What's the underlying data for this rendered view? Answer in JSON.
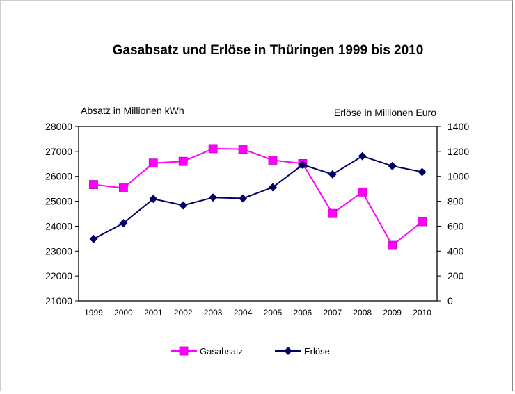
{
  "chart_data": {
    "type": "line",
    "title": "Gasabsatz und Erlöse in Thüringen 1999 bis 2010",
    "ylabel_left": "Absatz in Millionen  kWh",
    "ylabel_right": "Erlöse in Millionen Euro",
    "categories": [
      "1999",
      "2000",
      "2001",
      "2002",
      "2003",
      "2004",
      "2005",
      "2006",
      "2007",
      "2008",
      "2009",
      "2010"
    ],
    "ylim_left": [
      21000,
      28000
    ],
    "yticks_left": [
      "21000",
      "22000",
      "23000",
      "24000",
      "25000",
      "26000",
      "27000",
      "28000"
    ],
    "ylim_right": [
      0,
      1400
    ],
    "yticks_right": [
      "0",
      "200",
      "400",
      "600",
      "800",
      "1000",
      "1200",
      "1400"
    ],
    "grid": false,
    "legend_position": "bottom",
    "series": [
      {
        "name": "Gasabsatz",
        "axis": "left",
        "color": "#FF00FF",
        "marker": "square",
        "values": [
          25670,
          25530,
          26530,
          26600,
          27110,
          27090,
          26650,
          26510,
          24510,
          25370,
          23230,
          24180
        ]
      },
      {
        "name": "Erlöse",
        "axis": "right",
        "color": "#000066",
        "marker": "diamond",
        "values": [
          497,
          624,
          819,
          767,
          830,
          823,
          912,
          1093,
          1016,
          1162,
          1083,
          1035
        ]
      }
    ]
  }
}
